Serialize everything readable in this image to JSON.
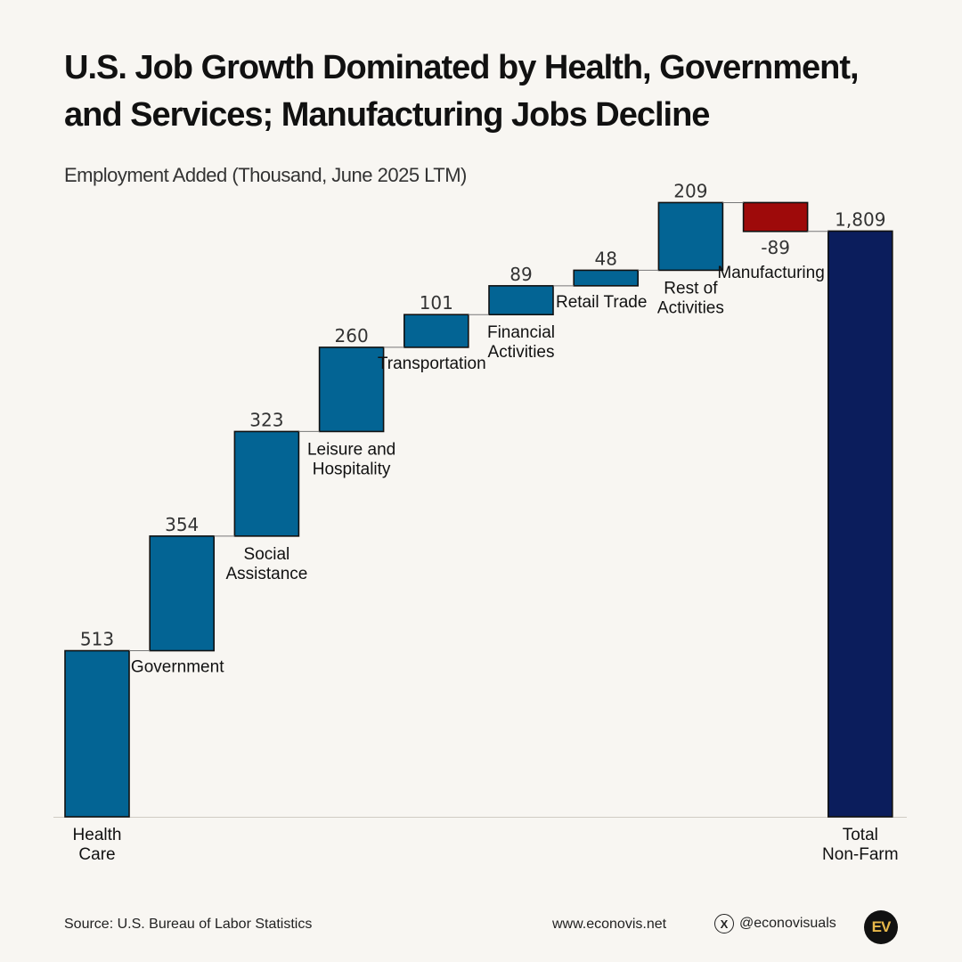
{
  "title": "U.S. Job Growth Dominated by Health, Government, and Services; Manufacturing Jobs Decline",
  "subtitle": "Employment Added (Thousand, June 2025 LTM)",
  "footer": {
    "source": "Source: U.S. Bureau of Labor Statistics",
    "website": "www.econovis.net",
    "handle": "@econovisuals",
    "logo_text": "EV",
    "x_icon": "x-logo-icon"
  },
  "colors": {
    "positive": "#036494",
    "negative": "#9e0a0a",
    "total": "#0b1d5c",
    "connector": "#777777"
  },
  "chart_data": {
    "type": "waterfall",
    "title": "U.S. Job Growth Dominated by Health, Government, and Services; Manufacturing Jobs Decline",
    "ylabel": "Employment Added (Thousand, June 2025 LTM)",
    "ylim": [
      0,
      1850
    ],
    "categories": [
      "Health Care",
      "Government",
      "Social Assistance",
      "Leisure and Hospitality",
      "Transportation",
      "Financial Activities",
      "Retail Trade",
      "Rest of Activities",
      "Manufacturing",
      "Total Non-Farm"
    ],
    "label_lines": [
      [
        "Health",
        "Care"
      ],
      [
        "Government"
      ],
      [
        "Social",
        "Assistance"
      ],
      [
        "Leisure and",
        "Hospitality"
      ],
      [
        "Transportation"
      ],
      [
        "Financial",
        "Activities"
      ],
      [
        "Retail Trade"
      ],
      [
        "Rest of",
        "Activities"
      ],
      [
        "Manufacturing"
      ],
      [
        "Total",
        "Non-Farm"
      ]
    ],
    "values": [
      513,
      354,
      323,
      260,
      101,
      89,
      48,
      209,
      -89,
      1809
    ],
    "value_labels": [
      "513",
      "354",
      "323",
      "260",
      "101",
      "89",
      "48",
      "209",
      "-89",
      "1,809"
    ],
    "kinds": [
      "increase",
      "increase",
      "increase",
      "increase",
      "increase",
      "increase",
      "increase",
      "increase",
      "decrease",
      "total"
    ]
  }
}
